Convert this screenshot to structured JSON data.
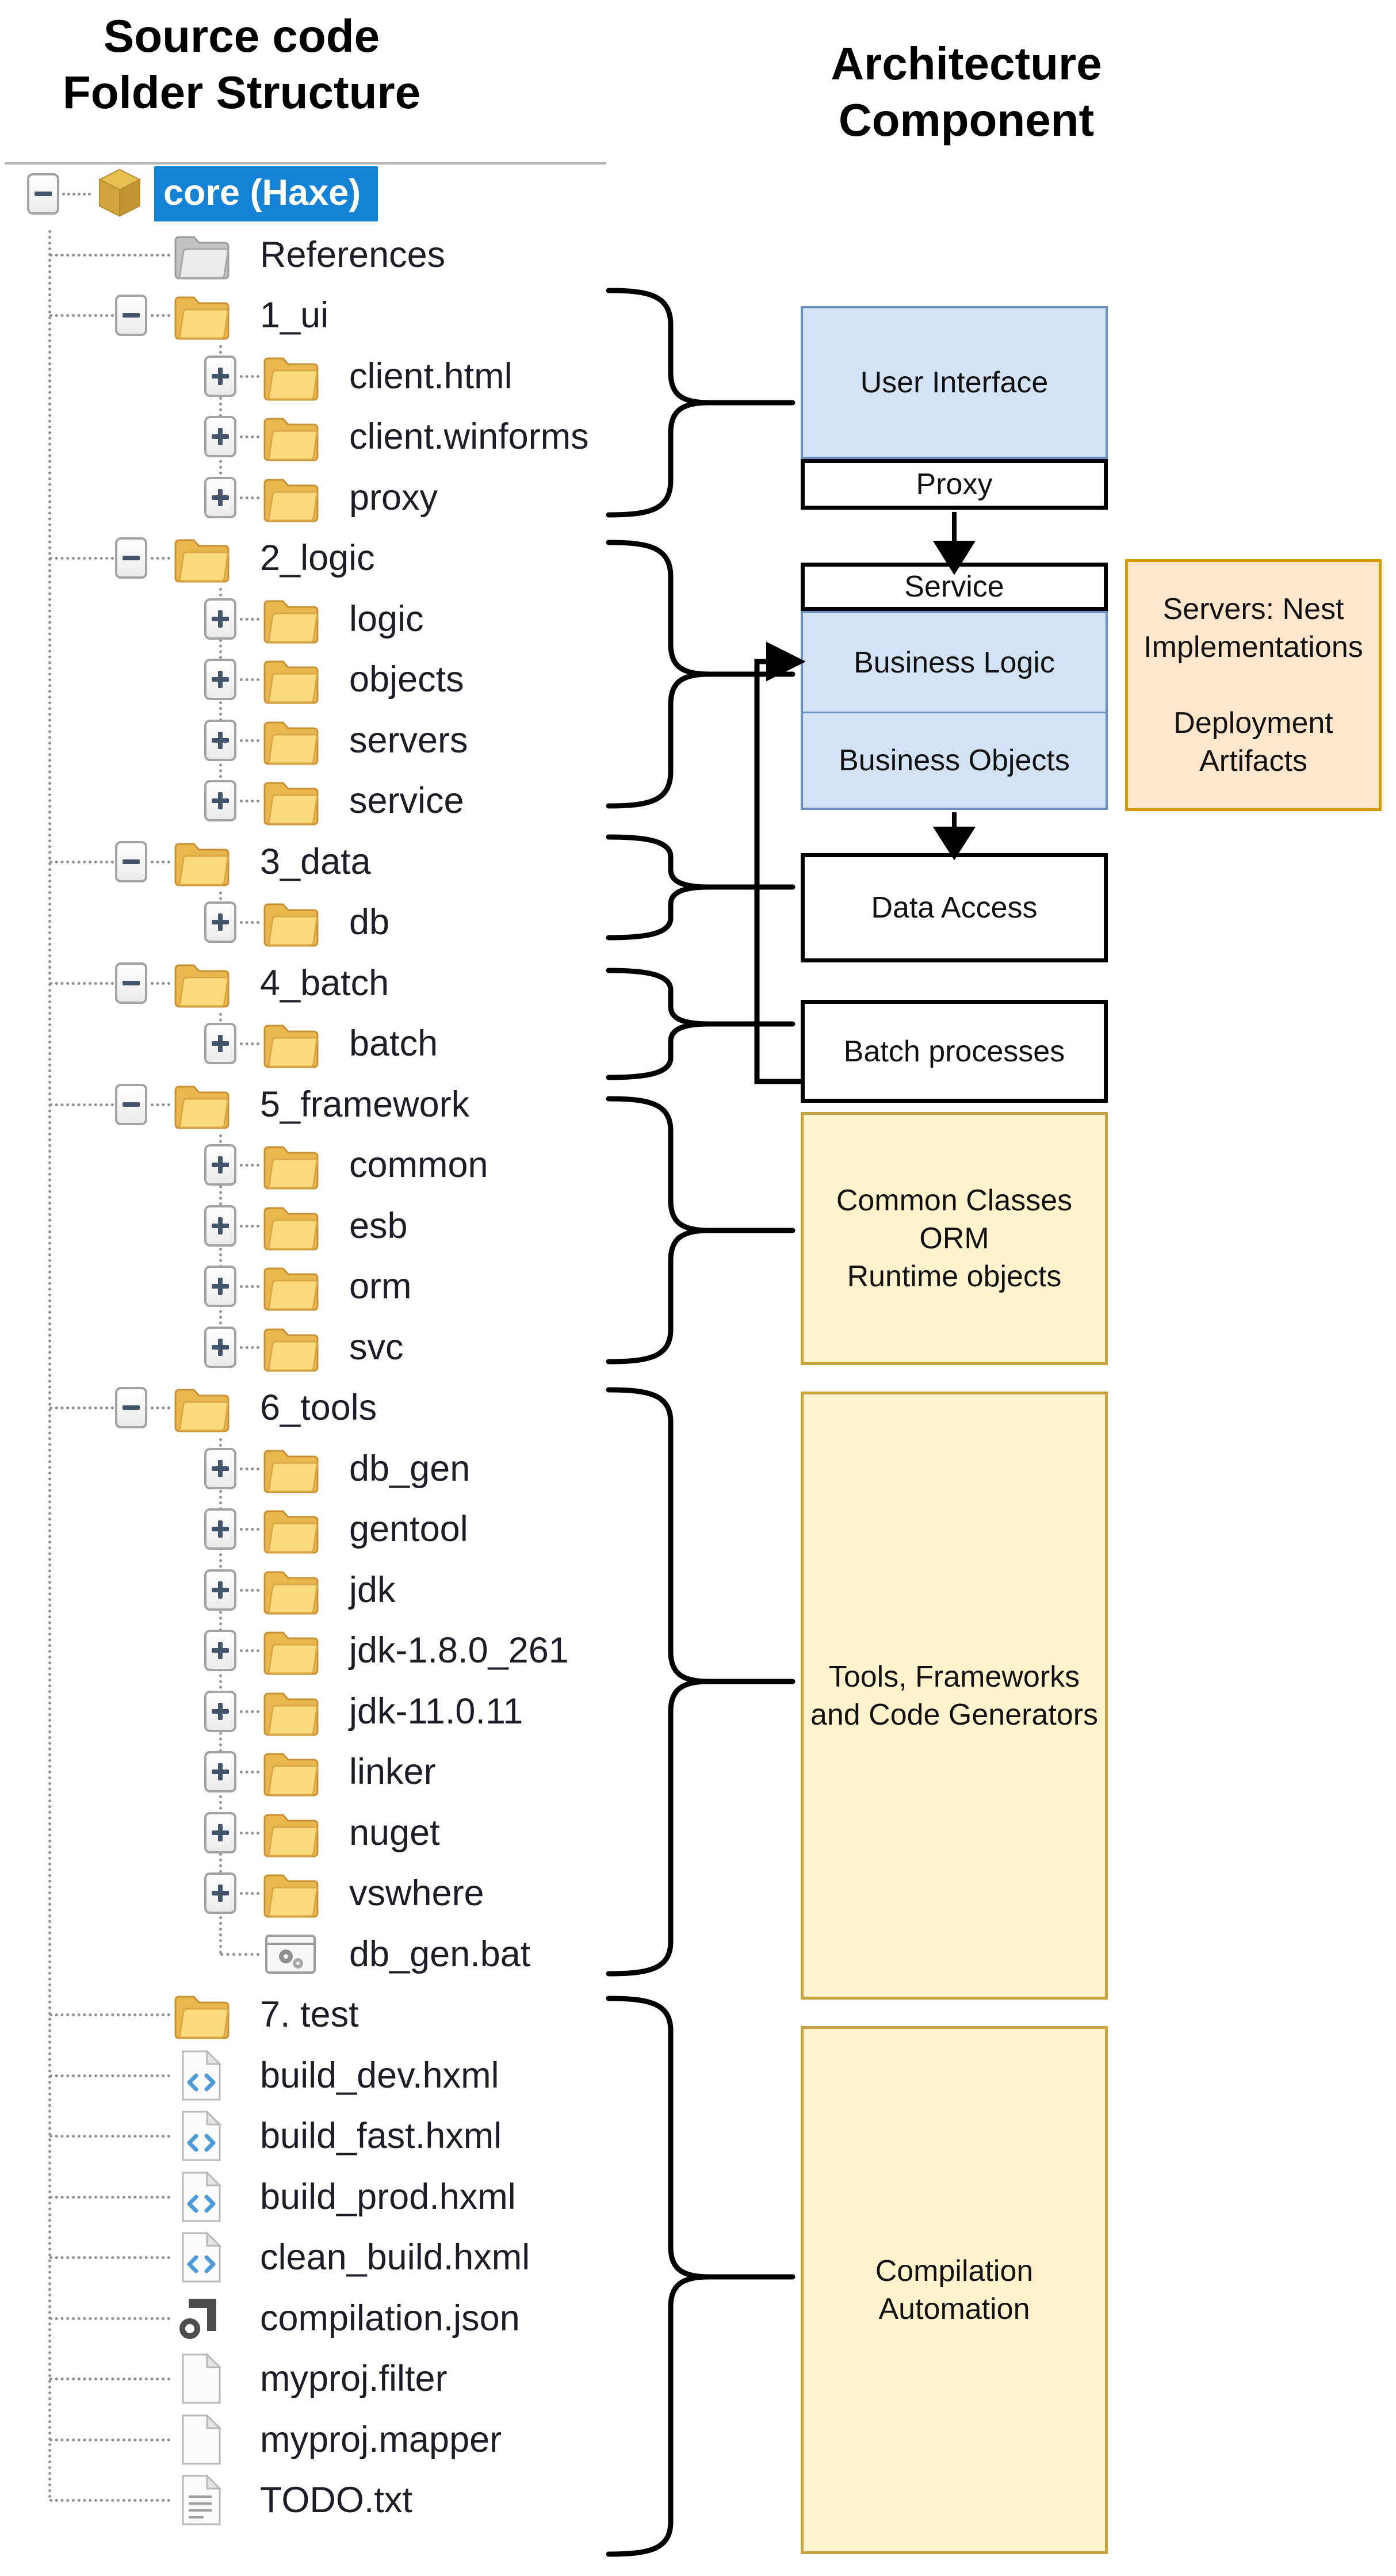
{
  "header": {
    "left_title": "Source code\nFolder Structure",
    "right_title": "Architecture\nComponent"
  },
  "tree": {
    "items": [
      {
        "label": "core (Haxe)",
        "level": 0,
        "icon": "package",
        "expander": "minus",
        "selected": true
      },
      {
        "label": "References",
        "level": 1,
        "icon": "folder-gray",
        "expander": "none",
        "selected": false
      },
      {
        "label": "1_ui",
        "level": 1,
        "icon": "folder",
        "expander": "minus",
        "selected": false
      },
      {
        "label": "client.html",
        "level": 2,
        "icon": "folder",
        "expander": "plus",
        "selected": false
      },
      {
        "label": "client.winforms",
        "level": 2,
        "icon": "folder",
        "expander": "plus",
        "selected": false
      },
      {
        "label": "proxy",
        "level": 2,
        "icon": "folder",
        "expander": "plus",
        "selected": false
      },
      {
        "label": "2_logic",
        "level": 1,
        "icon": "folder",
        "expander": "minus",
        "selected": false
      },
      {
        "label": "logic",
        "level": 2,
        "icon": "folder",
        "expander": "plus",
        "selected": false
      },
      {
        "label": "objects",
        "level": 2,
        "icon": "folder",
        "expander": "plus",
        "selected": false
      },
      {
        "label": "servers",
        "level": 2,
        "icon": "folder",
        "expander": "plus",
        "selected": false
      },
      {
        "label": "service",
        "level": 2,
        "icon": "folder",
        "expander": "plus",
        "selected": false
      },
      {
        "label": "3_data",
        "level": 1,
        "icon": "folder",
        "expander": "minus",
        "selected": false
      },
      {
        "label": "db",
        "level": 2,
        "icon": "folder",
        "expander": "plus",
        "selected": false
      },
      {
        "label": "4_batch",
        "level": 1,
        "icon": "folder",
        "expander": "minus",
        "selected": false
      },
      {
        "label": "batch",
        "level": 2,
        "icon": "folder",
        "expander": "plus",
        "selected": false
      },
      {
        "label": "5_framework",
        "level": 1,
        "icon": "folder",
        "expander": "minus",
        "selected": false
      },
      {
        "label": "common",
        "level": 2,
        "icon": "folder",
        "expander": "plus",
        "selected": false
      },
      {
        "label": "esb",
        "level": 2,
        "icon": "folder",
        "expander": "plus",
        "selected": false
      },
      {
        "label": "orm",
        "level": 2,
        "icon": "folder",
        "expander": "plus",
        "selected": false
      },
      {
        "label": "svc",
        "level": 2,
        "icon": "folder",
        "expander": "plus",
        "selected": false
      },
      {
        "label": "6_tools",
        "level": 1,
        "icon": "folder",
        "expander": "minus",
        "selected": false
      },
      {
        "label": "db_gen",
        "level": 2,
        "icon": "folder",
        "expander": "plus",
        "selected": false
      },
      {
        "label": "gentool",
        "level": 2,
        "icon": "folder",
        "expander": "plus",
        "selected": false
      },
      {
        "label": "jdk",
        "level": 2,
        "icon": "folder",
        "expander": "plus",
        "selected": false
      },
      {
        "label": "jdk-1.8.0_261",
        "level": 2,
        "icon": "folder",
        "expander": "plus",
        "selected": false
      },
      {
        "label": "jdk-11.0.11",
        "level": 2,
        "icon": "folder",
        "expander": "plus",
        "selected": false
      },
      {
        "label": "linker",
        "level": 2,
        "icon": "folder",
        "expander": "plus",
        "selected": false
      },
      {
        "label": "nuget",
        "level": 2,
        "icon": "folder",
        "expander": "plus",
        "selected": false
      },
      {
        "label": "vswhere",
        "level": 2,
        "icon": "folder",
        "expander": "plus",
        "selected": false
      },
      {
        "label": "db_gen.bat",
        "level": 2,
        "icon": "batch-file",
        "expander": "none",
        "selected": false
      },
      {
        "label": "7. test",
        "level": 1,
        "icon": "folder",
        "expander": "none",
        "selected": false
      },
      {
        "label": "build_dev.hxml",
        "level": 1,
        "icon": "code-file",
        "expander": "none",
        "selected": false
      },
      {
        "label": "build_fast.hxml",
        "level": 1,
        "icon": "code-file",
        "expander": "none",
        "selected": false
      },
      {
        "label": "build_prod.hxml",
        "level": 1,
        "icon": "code-file",
        "expander": "none",
        "selected": false
      },
      {
        "label": "clean_build.hxml",
        "level": 1,
        "icon": "code-file",
        "expander": "none",
        "selected": false
      },
      {
        "label": "compilation.json",
        "level": 1,
        "icon": "json-file",
        "expander": "none",
        "selected": false
      },
      {
        "label": "myproj.filter",
        "level": 1,
        "icon": "file",
        "expander": "none",
        "selected": false
      },
      {
        "label": "myproj.mapper",
        "level": 1,
        "icon": "file",
        "expander": "none",
        "selected": false
      },
      {
        "label": "TODO.txt",
        "level": 1,
        "icon": "text-file",
        "expander": "none",
        "selected": false
      }
    ]
  },
  "architecture": {
    "user_interface": "User Interface",
    "proxy": "Proxy",
    "service": "Service",
    "business_logic": "Business Logic",
    "business_objects": "Business Objects",
    "servers_nest": "Servers: Nest\nImplementations\n\nDeployment\nArtifacts",
    "data_access": "Data Access",
    "batch_processes": "Batch processes",
    "common_classes": "Common Classes\nORM\nRuntime objects",
    "tools": "Tools, Frameworks\nand Code Generators",
    "compilation": "Compilation\nAutomation"
  },
  "colors": {
    "selection_blue": "#1583d5",
    "box_blue_fill": "#d3e3f5",
    "box_blue_border": "#6c8ebf",
    "box_yellow_fill": "#fff2cc",
    "box_yellow_border": "#c6a340",
    "box_orange_fill": "#ffe6cc",
    "box_orange_border": "#d79b00",
    "folder_yellow": "#fbda7e"
  }
}
